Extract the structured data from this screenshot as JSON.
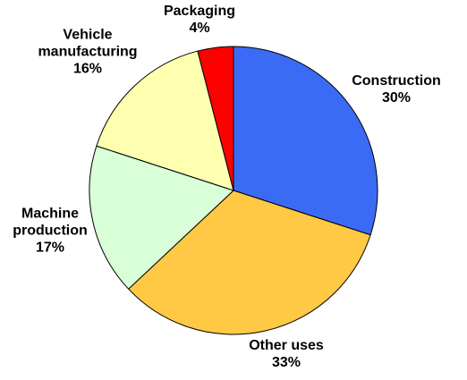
{
  "chart_data": {
    "type": "pie",
    "categories": [
      "Construction",
      "Other uses",
      "Machine production",
      "Vehicle manufacturing",
      "Packaging"
    ],
    "values": [
      30,
      33,
      17,
      16,
      4
    ],
    "value_labels": [
      "30%",
      "33%",
      "17%",
      "16%",
      "4%"
    ],
    "colors": [
      "#3b6bf4",
      "#ffc845",
      "#d8ffd8",
      "#ffffb0",
      "#ff0000"
    ]
  }
}
